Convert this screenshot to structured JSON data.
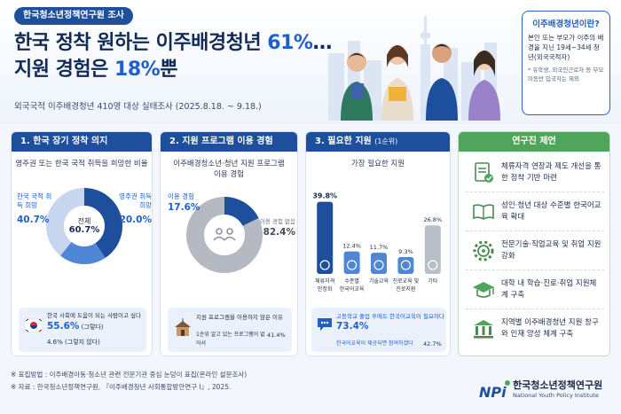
{
  "header": {
    "tag": "한국청소년정책연구원 조사",
    "headline_line1_pre": "한국 정착 원하는 이주배경청년 ",
    "headline_line1_hl": "61%",
    "headline_line1_post": "…",
    "headline_line2_pre": "지원 경험은 ",
    "headline_line2_hl": "18%",
    "headline_line2_post": "뿐",
    "subtitle": "외국국적 이주배경청년 410명 대상 실태조사 (2025.8.18. ~ 9.18.)"
  },
  "definition": {
    "title": "이주배경청년이란?",
    "body": "본인 또는 부모가 이주의 배경을 지닌 19세~34세 청년(외국국적자)",
    "note": "* 유학생, 외국인근로자 등 부모 미동반 입국자는 제외"
  },
  "card1": {
    "title": "1. 한국 장기 정착 의지",
    "subtitle": "영주권 또는 한국 국적 취득을 희망한 비율",
    "left_label": "한국 국적 취득 희망",
    "left_value": "40.7%",
    "right_label": "영주권 취득 희망",
    "right_value": "20.0%",
    "center_label": "전체",
    "center_value": "60.7%",
    "info_title": "한국 사회에 도움이 되는 사람이고 싶다",
    "info_value1": "55.6%",
    "info_value1_suffix": " (그렇다)",
    "info_value2": "4.6%",
    "info_value2_suffix": " (그렇지 않다)"
  },
  "card2": {
    "title": "2. 지원 프로그램 이용 경험",
    "subtitle": "이주배경청소년·청년 지원 프로그램 이용 경험",
    "used_label": "이용 경험",
    "used_value": "17.6%",
    "unused_label": "이용 경험 없음",
    "unused_value": "82.4%",
    "info_title": "지원 프로그램을 이용하지 않은 이유",
    "info_reason": "1순위  알고 있는 프로그램이 없어서",
    "info_value": "41.4%"
  },
  "card3": {
    "title": "3. 필요한 지원",
    "title_small": "(1순위)",
    "subtitle": "가장 필요한 지원",
    "info_title": "고등학교 졸업 후에도 한국어교육이 필요하다",
    "info_value": "73.4%",
    "info_sub": "한국어교육이 제공되면 참여하겠다",
    "info_sub_value": "42.7%"
  },
  "chart_data": {
    "type": "bar",
    "categories": [
      "체류자격 안정화",
      "수준별 한국어교육",
      "기술교육",
      "진로교육 및 진로지원",
      "기타"
    ],
    "values": [
      39.8,
      12.4,
      11.7,
      9.3,
      26.8
    ],
    "value_labels": [
      "39.8%",
      "12.4%",
      "11.7%",
      "9.3%",
      "26.8%"
    ],
    "title": "가장 필요한 지원",
    "ylim": [
      0,
      45
    ],
    "colors": [
      "#1e4f9c",
      "#4f86d6",
      "#4f86d6",
      "#4f86d6",
      "#b9bec8"
    ]
  },
  "card4": {
    "title": "연구진 제언",
    "items": [
      {
        "text": "체류자격 연장과 제도 개선을 통한 정착 기반 마련",
        "icon": "document-check-icon"
      },
      {
        "text": "성인·청년 대상 수준별 한국어교육 확대",
        "icon": "open-book-icon"
      },
      {
        "text": "전문기술·직업교육 및 취업 지원 강화",
        "icon": "gear-icon"
      },
      {
        "text": "대학 내 학습·진로·취업 지원체계 구축",
        "icon": "graduation-cap-icon"
      },
      {
        "text": "지역별 이주배경청년 지원 창구와 인재 양성 체계 구축",
        "icon": "building-icon"
      }
    ]
  },
  "footer": {
    "line1": "※ 표집방법 : 이주배경아동·청소년 관련 전문기관 중심 눈덩이 표집(온라인 설문조사)",
    "line2": "※ 자료 : 한국청소년정책연구원, 『이주배경청년 사회통합방안연구 I』, 2025."
  },
  "logo": {
    "mark": "NPi",
    "name": "한국청소년정책연구원",
    "en": "National Youth Policy Institute"
  }
}
